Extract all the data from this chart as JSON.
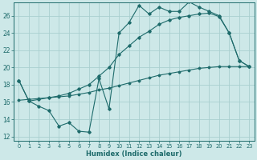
{
  "xlabel": "Humidex (Indice chaleur)",
  "xlim": [
    -0.5,
    23.5
  ],
  "ylim": [
    11.5,
    27.5
  ],
  "yticks": [
    12,
    14,
    16,
    18,
    20,
    22,
    24,
    26
  ],
  "xticks": [
    0,
    1,
    2,
    3,
    4,
    5,
    6,
    7,
    8,
    9,
    10,
    11,
    12,
    13,
    14,
    15,
    16,
    17,
    18,
    19,
    20,
    21,
    22,
    23
  ],
  "bg_color": "#cde8e8",
  "grid_color": "#aacfcf",
  "line_color": "#1e6b6b",
  "curve1_y": [
    18.5,
    16.1,
    15.5,
    15.0,
    13.2,
    13.6,
    12.6,
    12.5,
    18.7,
    15.2,
    24.0,
    25.2,
    27.2,
    26.2,
    27.0,
    26.5,
    26.5,
    27.6,
    27.0,
    26.5,
    26.0,
    24.0,
    20.8,
    20.1
  ],
  "curve2_y": [
    18.5,
    16.1,
    16.3,
    16.5,
    16.7,
    17.0,
    17.5,
    18.0,
    19.0,
    20.0,
    21.5,
    22.5,
    23.5,
    24.2,
    25.0,
    25.5,
    25.8,
    26.0,
    26.2,
    26.3,
    25.9,
    24.0,
    20.8,
    20.1
  ],
  "curve3_y": [
    16.2,
    16.3,
    16.4,
    16.5,
    16.6,
    16.7,
    16.9,
    17.1,
    17.4,
    17.6,
    17.9,
    18.2,
    18.5,
    18.8,
    19.1,
    19.3,
    19.5,
    19.7,
    19.9,
    20.0,
    20.1,
    20.1,
    20.1,
    20.1
  ]
}
